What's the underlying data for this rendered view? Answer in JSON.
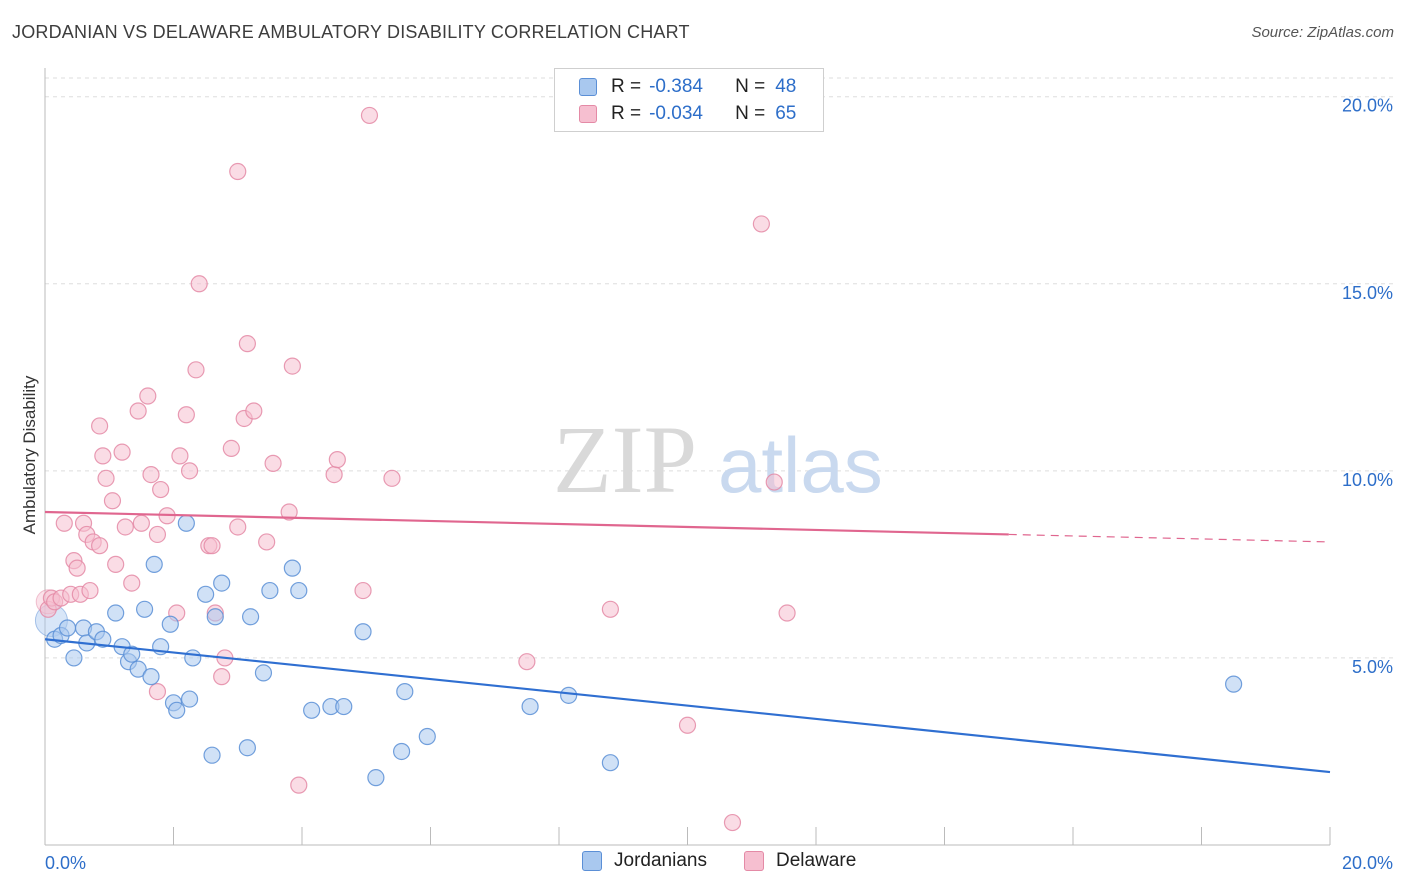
{
  "title": "JORDANIAN VS DELAWARE AMBULATORY DISABILITY CORRELATION CHART",
  "source": "Source: ZipAtlas.com",
  "watermark": {
    "zip": "ZIP",
    "atlas": "atlas"
  },
  "legend": {
    "rows": [
      {
        "r_label": "R =",
        "r_value": "-0.384",
        "n_label": "N =",
        "n_value": "48"
      },
      {
        "r_label": "R =",
        "r_value": "-0.034",
        "n_label": "N =",
        "n_value": "65"
      }
    ]
  },
  "bottom_legend": [
    "Jordanians",
    "Delaware"
  ],
  "colors": {
    "blue_fill": "#a9c8ef",
    "blue_stroke": "#5b8fd6",
    "blue_line": "#2f6fd1",
    "pink_fill": "#f6bfd0",
    "pink_stroke": "#e48aa6",
    "pink_line": "#e0668f",
    "axis_text": "#2d6ec9",
    "grid": "#dedede"
  },
  "chart_data": {
    "type": "scatter",
    "xlabel": "",
    "ylabel": "Ambulatory Disability",
    "xlim": [
      0,
      20
    ],
    "ylim": [
      0,
      20.5
    ],
    "x_tick_labels": [
      "0.0%",
      "20.0%"
    ],
    "y_ticks": [
      5,
      10,
      15,
      20
    ],
    "y_tick_labels": [
      "5.0%",
      "10.0%",
      "15.0%",
      "20.0%"
    ],
    "grid": true,
    "legend_placement": "top-center",
    "series": [
      {
        "name": "Jordanians",
        "points": [
          [
            0.15,
            5.5
          ],
          [
            0.25,
            5.6
          ],
          [
            0.35,
            5.8
          ],
          [
            0.45,
            5.0
          ],
          [
            0.6,
            5.8
          ],
          [
            0.65,
            5.4
          ],
          [
            0.8,
            5.7
          ],
          [
            0.9,
            5.5
          ],
          [
            1.1,
            6.2
          ],
          [
            1.2,
            5.3
          ],
          [
            1.3,
            4.9
          ],
          [
            1.35,
            5.1
          ],
          [
            1.45,
            4.7
          ],
          [
            1.55,
            6.3
          ],
          [
            1.65,
            4.5
          ],
          [
            1.7,
            7.5
          ],
          [
            1.8,
            5.3
          ],
          [
            1.95,
            5.9
          ],
          [
            2.0,
            3.8
          ],
          [
            2.05,
            3.6
          ],
          [
            2.2,
            8.6
          ],
          [
            2.25,
            3.9
          ],
          [
            2.3,
            5.0
          ],
          [
            2.5,
            6.7
          ],
          [
            2.6,
            2.4
          ],
          [
            2.65,
            6.1
          ],
          [
            2.75,
            7.0
          ],
          [
            3.15,
            2.6
          ],
          [
            3.2,
            6.1
          ],
          [
            3.4,
            4.6
          ],
          [
            3.5,
            6.8
          ],
          [
            3.85,
            7.4
          ],
          [
            3.95,
            6.8
          ],
          [
            4.15,
            3.6
          ],
          [
            4.45,
            3.7
          ],
          [
            4.65,
            3.7
          ],
          [
            4.95,
            5.7
          ],
          [
            5.15,
            1.8
          ],
          [
            5.55,
            2.5
          ],
          [
            5.6,
            4.1
          ],
          [
            5.95,
            2.9
          ],
          [
            7.55,
            3.7
          ],
          [
            8.15,
            4.0
          ],
          [
            8.8,
            2.2
          ],
          [
            18.5,
            4.3
          ]
        ],
        "trend": {
          "x": [
            0,
            20
          ],
          "y": [
            5.5,
            1.95
          ]
        }
      },
      {
        "name": "Delaware",
        "points": [
          [
            0.05,
            6.3
          ],
          [
            0.1,
            6.6
          ],
          [
            0.15,
            6.5
          ],
          [
            0.25,
            6.6
          ],
          [
            0.3,
            8.6
          ],
          [
            0.4,
            6.7
          ],
          [
            0.45,
            7.6
          ],
          [
            0.5,
            7.4
          ],
          [
            0.55,
            6.7
          ],
          [
            0.6,
            8.6
          ],
          [
            0.65,
            8.3
          ],
          [
            0.7,
            6.8
          ],
          [
            0.75,
            8.1
          ],
          [
            0.85,
            8.0
          ],
          [
            0.85,
            11.2
          ],
          [
            0.9,
            10.4
          ],
          [
            0.95,
            9.8
          ],
          [
            1.05,
            9.2
          ],
          [
            1.1,
            7.5
          ],
          [
            1.2,
            10.5
          ],
          [
            1.25,
            8.5
          ],
          [
            1.35,
            7.0
          ],
          [
            1.45,
            11.6
          ],
          [
            1.5,
            8.6
          ],
          [
            1.6,
            12.0
          ],
          [
            1.65,
            9.9
          ],
          [
            1.75,
            4.1
          ],
          [
            1.75,
            8.3
          ],
          [
            1.8,
            9.5
          ],
          [
            1.9,
            8.8
          ],
          [
            2.05,
            6.2
          ],
          [
            2.1,
            10.4
          ],
          [
            2.2,
            11.5
          ],
          [
            2.25,
            10.0
          ],
          [
            2.35,
            12.7
          ],
          [
            2.4,
            15.0
          ],
          [
            2.55,
            8.0
          ],
          [
            2.6,
            8.0
          ],
          [
            2.65,
            6.2
          ],
          [
            2.75,
            4.5
          ],
          [
            2.8,
            5.0
          ],
          [
            2.9,
            10.6
          ],
          [
            3.0,
            8.5
          ],
          [
            3.0,
            18.0
          ],
          [
            3.1,
            11.4
          ],
          [
            3.15,
            13.4
          ],
          [
            3.25,
            11.6
          ],
          [
            3.45,
            8.1
          ],
          [
            3.55,
            10.2
          ],
          [
            3.8,
            8.9
          ],
          [
            3.85,
            12.8
          ],
          [
            3.95,
            1.6
          ],
          [
            4.5,
            9.9
          ],
          [
            4.55,
            10.3
          ],
          [
            4.95,
            6.8
          ],
          [
            5.05,
            19.5
          ],
          [
            5.4,
            9.8
          ],
          [
            7.5,
            4.9
          ],
          [
            8.8,
            6.3
          ],
          [
            10.0,
            3.2
          ],
          [
            10.7,
            0.6
          ],
          [
            11.15,
            16.6
          ],
          [
            11.35,
            9.7
          ],
          [
            11.55,
            6.2
          ]
        ],
        "trend": {
          "x": [
            0,
            15
          ],
          "y": [
            8.9,
            8.3
          ]
        },
        "trend_dashed": {
          "x": [
            15,
            20
          ],
          "y": [
            8.3,
            8.1
          ]
        }
      }
    ]
  }
}
